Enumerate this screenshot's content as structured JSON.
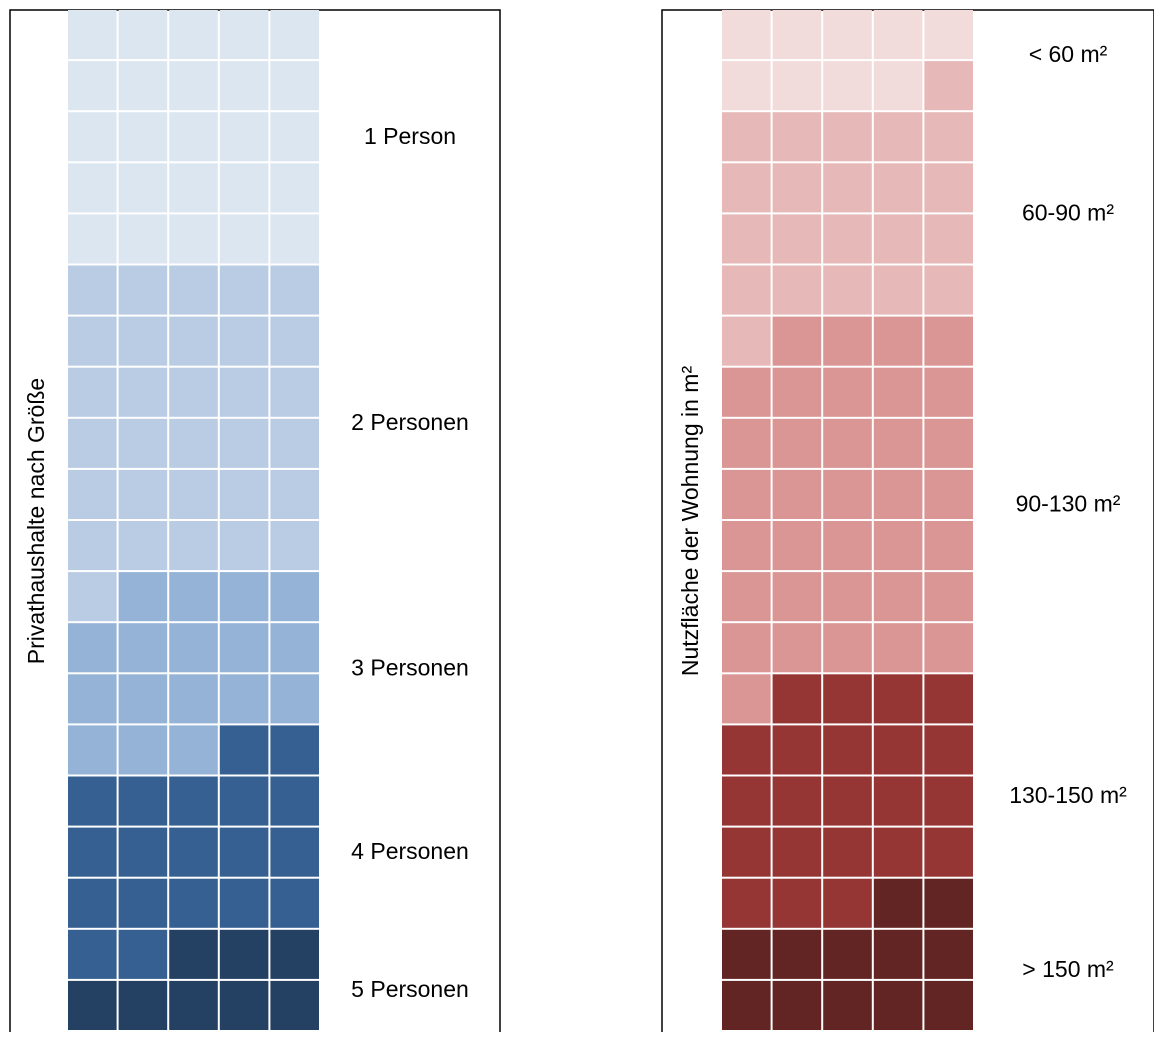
{
  "chart_data": [
    {
      "type": "waffle",
      "ylabel": "Privathaushalte nach Größe",
      "categories": [
        "1 Person",
        "2 Personen",
        "3 Personen",
        "4 Personen",
        "5 Personen"
      ],
      "values": [
        25,
        31,
        17,
        19,
        8
      ],
      "colors": [
        "#dce6f0",
        "#b9cce4",
        "#95b3d7",
        "#366092",
        "#244062"
      ]
    },
    {
      "type": "waffle",
      "ylabel": "Nutzfläche der Wohnung in m²",
      "categories": [
        "< 60 m²",
        "60-90 m²",
        "90-130 m²",
        "130-150 m²",
        "> 150 m²"
      ],
      "values": [
        9,
        22,
        35,
        22,
        12
      ],
      "colors": [
        "#f2dcdb",
        "#e6b8b7",
        "#da9694",
        "#963634",
        "#632523"
      ]
    }
  ]
}
